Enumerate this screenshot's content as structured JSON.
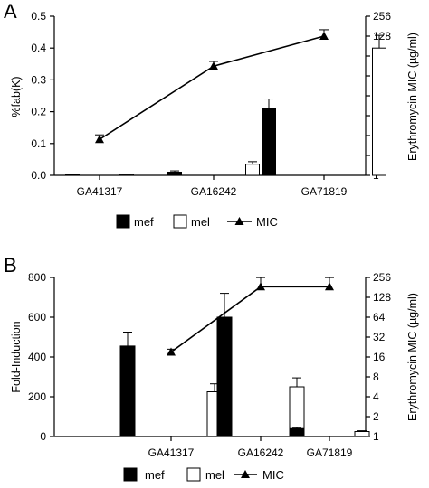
{
  "chart_data": [
    {
      "panel": "A",
      "type": "bar",
      "categories": [
        "GA41317",
        "GA16242",
        "GA71819"
      ],
      "ylabel": "%fab(K)",
      "ylim": [
        0,
        0.5
      ],
      "yticks": [
        "0.0",
        "0.1",
        "0.2",
        "0.3",
        "0.4",
        "0.5"
      ],
      "y2label": "Erythromycin MIC (µg/ml)",
      "y2_scale": "log2",
      "y2ticks": [
        1,
        2,
        4,
        8,
        16,
        32,
        64,
        128,
        256
      ],
      "series": [
        {
          "name": "mef",
          "values": [
            0.0,
            0.01,
            0.21
          ],
          "errors": [
            0.0,
            0.004,
            0.03
          ],
          "color": "#000000"
        },
        {
          "name": "mel",
          "values": [
            0.003,
            0.035,
            0.4
          ],
          "errors": [
            0.001,
            0.008,
            0.04
          ],
          "color": "#ffffff"
        },
        {
          "name": "MIC",
          "values": [
            3.5,
            45,
            128
          ],
          "errors": [
            0.6,
            8,
            32
          ],
          "axis": "right"
        }
      ],
      "legend": "bottom"
    },
    {
      "panel": "B",
      "type": "bar",
      "categories": [
        "GA41317",
        "GA16242",
        "GA71819"
      ],
      "ylabel": "Fold-Induction",
      "ylim": [
        0,
        800
      ],
      "yticks": [
        "0",
        "200",
        "400",
        "600",
        "800"
      ],
      "y2label": "Erythromycin  MIC (µg/ml)",
      "y2_scale": "log2",
      "y2ticks": [
        1,
        2,
        4,
        8,
        16,
        32,
        64,
        128,
        256
      ],
      "series": [
        {
          "name": "mef",
          "values": [
            455,
            600,
            40
          ],
          "errors": [
            70,
            120,
            5
          ],
          "color": "#000000"
        },
        {
          "name": "mel",
          "values": [
            225,
            250,
            25
          ],
          "errors": [
            40,
            45,
            4
          ],
          "color": "#ffffff"
        },
        {
          "name": "MIC",
          "values": [
            19,
            185,
            185
          ],
          "errors": [
            2,
            70,
            70
          ],
          "axis": "right"
        }
      ],
      "legend": "bottom"
    }
  ]
}
